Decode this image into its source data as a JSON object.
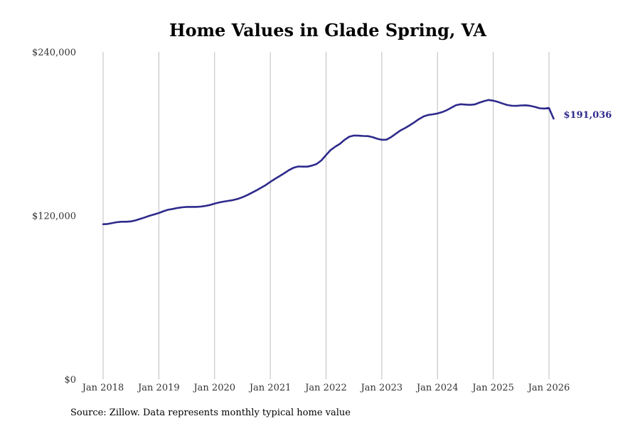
{
  "chart_data": {
    "type": "line",
    "title": "Home Values in Glade Spring, VA",
    "xlabel": "",
    "ylabel": "",
    "ylim": [
      0,
      240000
    ],
    "xlim": [
      2018.0,
      2026.0
    ],
    "grid": "vertical",
    "yticks": [
      {
        "value": 0,
        "label": "$0"
      },
      {
        "value": 120000,
        "label": "$120,000"
      },
      {
        "value": 240000,
        "label": "$240,000"
      }
    ],
    "xticks": [
      {
        "value": 2018,
        "label": "Jan 2018"
      },
      {
        "value": 2019,
        "label": "Jan 2019"
      },
      {
        "value": 2020,
        "label": "Jan 2020"
      },
      {
        "value": 2021,
        "label": "Jan 2021"
      },
      {
        "value": 2022,
        "label": "Jan 2022"
      },
      {
        "value": 2023,
        "label": "Jan 2023"
      },
      {
        "value": 2024,
        "label": "Jan 2024"
      },
      {
        "value": 2025,
        "label": "Jan 2025"
      },
      {
        "value": 2026,
        "label": "Jan 2026"
      }
    ],
    "series": [
      {
        "name": "Typical home value",
        "color": "#2e2a8c",
        "end_label": "$191,036",
        "x": [
          2018.0,
          2018.083,
          2018.167,
          2018.25,
          2018.333,
          2018.417,
          2018.5,
          2018.583,
          2018.667,
          2018.75,
          2018.833,
          2018.917,
          2019.0,
          2019.083,
          2019.167,
          2019.25,
          2019.333,
          2019.417,
          2019.5,
          2019.583,
          2019.667,
          2019.75,
          2019.833,
          2019.917,
          2020.0,
          2020.083,
          2020.167,
          2020.25,
          2020.333,
          2020.417,
          2020.5,
          2020.583,
          2020.667,
          2020.75,
          2020.833,
          2020.917,
          2021.0,
          2021.083,
          2021.167,
          2021.25,
          2021.333,
          2021.417,
          2021.5,
          2021.583,
          2021.667,
          2021.75,
          2021.833,
          2021.917,
          2022.0,
          2022.083,
          2022.167,
          2022.25,
          2022.333,
          2022.417,
          2022.5,
          2022.583,
          2022.667,
          2022.75,
          2022.833,
          2022.917,
          2023.0,
          2023.083,
          2023.167,
          2023.25,
          2023.333,
          2023.417,
          2023.5,
          2023.583,
          2023.667,
          2023.75,
          2023.833,
          2023.917,
          2024.0,
          2024.083,
          2024.167,
          2024.25,
          2024.333,
          2024.417,
          2024.5,
          2024.583,
          2024.667,
          2024.75,
          2024.833,
          2024.917,
          2025.0,
          2025.083,
          2025.167,
          2025.25,
          2025.333,
          2025.417,
          2025.5,
          2025.583,
          2025.667,
          2025.75,
          2025.833,
          2025.917,
          2026.0,
          2026.083
        ],
        "values": [
          113600,
          113800,
          114500,
          115100,
          115400,
          115400,
          115700,
          116400,
          117500,
          118600,
          119800,
          120800,
          121800,
          123100,
          124200,
          124800,
          125500,
          126000,
          126300,
          126300,
          126300,
          126500,
          127000,
          127700,
          128700,
          129600,
          130200,
          130700,
          131300,
          132200,
          133400,
          134900,
          136600,
          138400,
          140300,
          142300,
          144600,
          146800,
          148900,
          151000,
          153200,
          155000,
          155900,
          155800,
          155800,
          156600,
          157800,
          160400,
          164300,
          168000,
          170500,
          172600,
          175500,
          177800,
          178600,
          178500,
          178300,
          178200,
          177500,
          176300,
          175500,
          175600,
          177500,
          179900,
          182300,
          184100,
          186100,
          188300,
          190700,
          192600,
          193700,
          194200,
          194800,
          195800,
          197200,
          199100,
          200900,
          201600,
          201300,
          201100,
          201400,
          202700,
          203800,
          204700,
          204200,
          203300,
          202100,
          201000,
          200500,
          200400,
          200700,
          200800,
          200400,
          199600,
          198600,
          198400,
          198800,
          191036
        ]
      }
    ]
  },
  "footer": {
    "source": "Source: Zillow. Data represents monthly typical home value"
  }
}
